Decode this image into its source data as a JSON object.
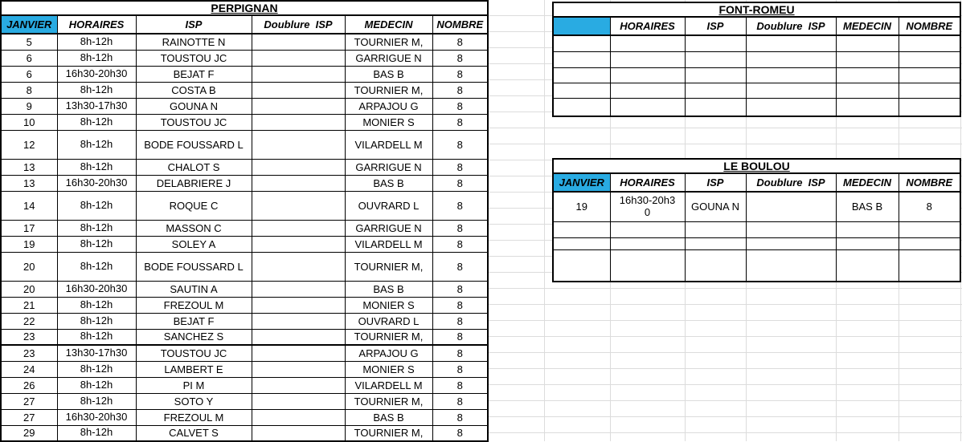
{
  "accent_color": "#29ABE2",
  "gridline_color": "#dcdcdc",
  "tables": {
    "perpignan": {
      "title": "PERPIGNAN",
      "headers": {
        "month": "JANVIER",
        "horaires": "HORAIRES",
        "isp": "ISP",
        "doublure": "Doublure  ISP",
        "medecin": "MEDECIN",
        "nombre": "NOMBRE"
      },
      "rows": [
        {
          "day": "5",
          "horaires": "8h-12h",
          "isp": "RAINOTTE N",
          "doublure": "",
          "medecin": "TOURNIER M,",
          "nombre": "8",
          "tall": false,
          "thick_bottom": false
        },
        {
          "day": "6",
          "horaires": "8h-12h",
          "isp": "TOUSTOU JC",
          "doublure": "",
          "medecin": "GARRIGUE N",
          "nombre": "8",
          "tall": false,
          "thick_bottom": false
        },
        {
          "day": "6",
          "horaires": "16h30-20h30",
          "isp": "BEJAT F",
          "doublure": "",
          "medecin": "BAS B",
          "nombre": "8",
          "tall": false,
          "thick_bottom": false
        },
        {
          "day": "8",
          "horaires": "8h-12h",
          "isp": "COSTA B",
          "doublure": "",
          "medecin": "TOURNIER M,",
          "nombre": "8",
          "tall": false,
          "thick_bottom": false
        },
        {
          "day": "9",
          "horaires": "13h30-17h30",
          "isp": "GOUNA N",
          "doublure": "",
          "medecin": "ARPAJOU G",
          "nombre": "8",
          "tall": false,
          "thick_bottom": false
        },
        {
          "day": "10",
          "horaires": "8h-12h",
          "isp": "TOUSTOU JC",
          "doublure": "",
          "medecin": "MONIER S",
          "nombre": "8",
          "tall": false,
          "thick_bottom": false
        },
        {
          "day": "12",
          "horaires": "8h-12h",
          "isp": "BODE FOUSSARD L",
          "doublure": "",
          "medecin": "VILARDELL M",
          "nombre": "8",
          "tall": true,
          "thick_bottom": false
        },
        {
          "day": "13",
          "horaires": "8h-12h",
          "isp": "CHALOT S",
          "doublure": "",
          "medecin": "GARRIGUE N",
          "nombre": "8",
          "tall": false,
          "thick_bottom": false
        },
        {
          "day": "13",
          "horaires": "16h30-20h30",
          "isp": "DELABRIERE J",
          "doublure": "",
          "medecin": "BAS B",
          "nombre": "8",
          "tall": false,
          "thick_bottom": false
        },
        {
          "day": "14",
          "horaires": "8h-12h",
          "isp": "ROQUE C",
          "doublure": "",
          "medecin": "OUVRARD L",
          "nombre": "8",
          "tall": true,
          "thick_bottom": false
        },
        {
          "day": "17",
          "horaires": "8h-12h",
          "isp": "MASSON C",
          "doublure": "",
          "medecin": "GARRIGUE N",
          "nombre": "8",
          "tall": false,
          "thick_bottom": false
        },
        {
          "day": "19",
          "horaires": "8h-12h",
          "isp": "SOLEY A",
          "doublure": "",
          "medecin": "VILARDELL M",
          "nombre": "8",
          "tall": false,
          "thick_bottom": false
        },
        {
          "day": "20",
          "horaires": "8h-12h",
          "isp": "BODE FOUSSARD L",
          "doublure": "",
          "medecin": "TOURNIER M,",
          "nombre": "8",
          "tall": true,
          "thick_bottom": false
        },
        {
          "day": "20",
          "horaires": "16h30-20h30",
          "isp": "SAUTIN A",
          "doublure": "",
          "medecin": "BAS B",
          "nombre": "8",
          "tall": false,
          "thick_bottom": false
        },
        {
          "day": "21",
          "horaires": "8h-12h",
          "isp": "FREZOUL M",
          "doublure": "",
          "medecin": "MONIER S",
          "nombre": "8",
          "tall": false,
          "thick_bottom": false
        },
        {
          "day": "22",
          "horaires": "8h-12h",
          "isp": "BEJAT F",
          "doublure": "",
          "medecin": "OUVRARD L",
          "nombre": "8",
          "tall": false,
          "thick_bottom": false
        },
        {
          "day": "23",
          "horaires": "8h-12h",
          "isp": "SANCHEZ S",
          "doublure": "",
          "medecin": "TOURNIER M,",
          "nombre": "8",
          "tall": false,
          "thick_bottom": true
        },
        {
          "day": "23",
          "horaires": "13h30-17h30",
          "isp": "TOUSTOU JC",
          "doublure": "",
          "medecin": "ARPAJOU G",
          "nombre": "8",
          "tall": false,
          "thick_bottom": false
        },
        {
          "day": "24",
          "horaires": "8h-12h",
          "isp": "LAMBERT E",
          "doublure": "",
          "medecin": "MONIER S",
          "nombre": "8",
          "tall": false,
          "thick_bottom": false
        },
        {
          "day": "26",
          "horaires": "8h-12h",
          "isp": "PI M",
          "doublure": "",
          "medecin": "VILARDELL M",
          "nombre": "8",
          "tall": false,
          "thick_bottom": false
        },
        {
          "day": "27",
          "horaires": "8h-12h",
          "isp": "SOTO Y",
          "doublure": "",
          "medecin": "TOURNIER M,",
          "nombre": "8",
          "tall": false,
          "thick_bottom": false
        },
        {
          "day": "27",
          "horaires": "16h30-20h30",
          "isp": "FREZOUL M",
          "doublure": "",
          "medecin": "BAS B",
          "nombre": "8",
          "tall": false,
          "thick_bottom": false
        },
        {
          "day": "29",
          "horaires": "8h-12h",
          "isp": "CALVET S",
          "doublure": "",
          "medecin": "TOURNIER M,",
          "nombre": "8",
          "tall": false,
          "thick_bottom": false
        }
      ]
    },
    "font_romeu": {
      "title": "FONT-ROMEU",
      "headers": {
        "month": "",
        "horaires": "HORAIRES",
        "isp": "ISP",
        "doublure": "Doublure  ISP",
        "medecin": "MEDECIN",
        "nombre": "NOMBRE"
      },
      "rows": [
        {
          "day": "",
          "horaires": "",
          "isp": "",
          "doublure": "",
          "medecin": "",
          "nombre": ""
        },
        {
          "day": "",
          "horaires": "",
          "isp": "",
          "doublure": "",
          "medecin": "",
          "nombre": ""
        },
        {
          "day": "",
          "horaires": "",
          "isp": "",
          "doublure": "",
          "medecin": "",
          "nombre": ""
        },
        {
          "day": "",
          "horaires": "",
          "isp": "",
          "doublure": "",
          "medecin": "",
          "nombre": ""
        },
        {
          "day": "",
          "horaires": "",
          "isp": "",
          "doublure": "",
          "medecin": "",
          "nombre": ""
        }
      ]
    },
    "le_boulou": {
      "title": "LE BOULOU",
      "headers": {
        "month": "JANVIER",
        "horaires": "HORAIRES",
        "isp": "ISP",
        "doublure": "Doublure  ISP",
        "medecin": "MEDECIN",
        "nombre": "NOMBRE"
      },
      "rows": [
        {
          "day": "19",
          "horaires": "16h30-20h3\n0",
          "isp": "GOUNA N",
          "doublure": "",
          "medecin": "BAS B",
          "nombre": "8"
        },
        {
          "day": "",
          "horaires": "",
          "isp": "",
          "doublure": "",
          "medecin": "",
          "nombre": ""
        },
        {
          "day": "",
          "horaires": "",
          "isp": "",
          "doublure": "",
          "medecin": "",
          "nombre": ""
        },
        {
          "day": "",
          "horaires": "",
          "isp": "",
          "doublure": "",
          "medecin": "",
          "nombre": ""
        }
      ]
    }
  }
}
